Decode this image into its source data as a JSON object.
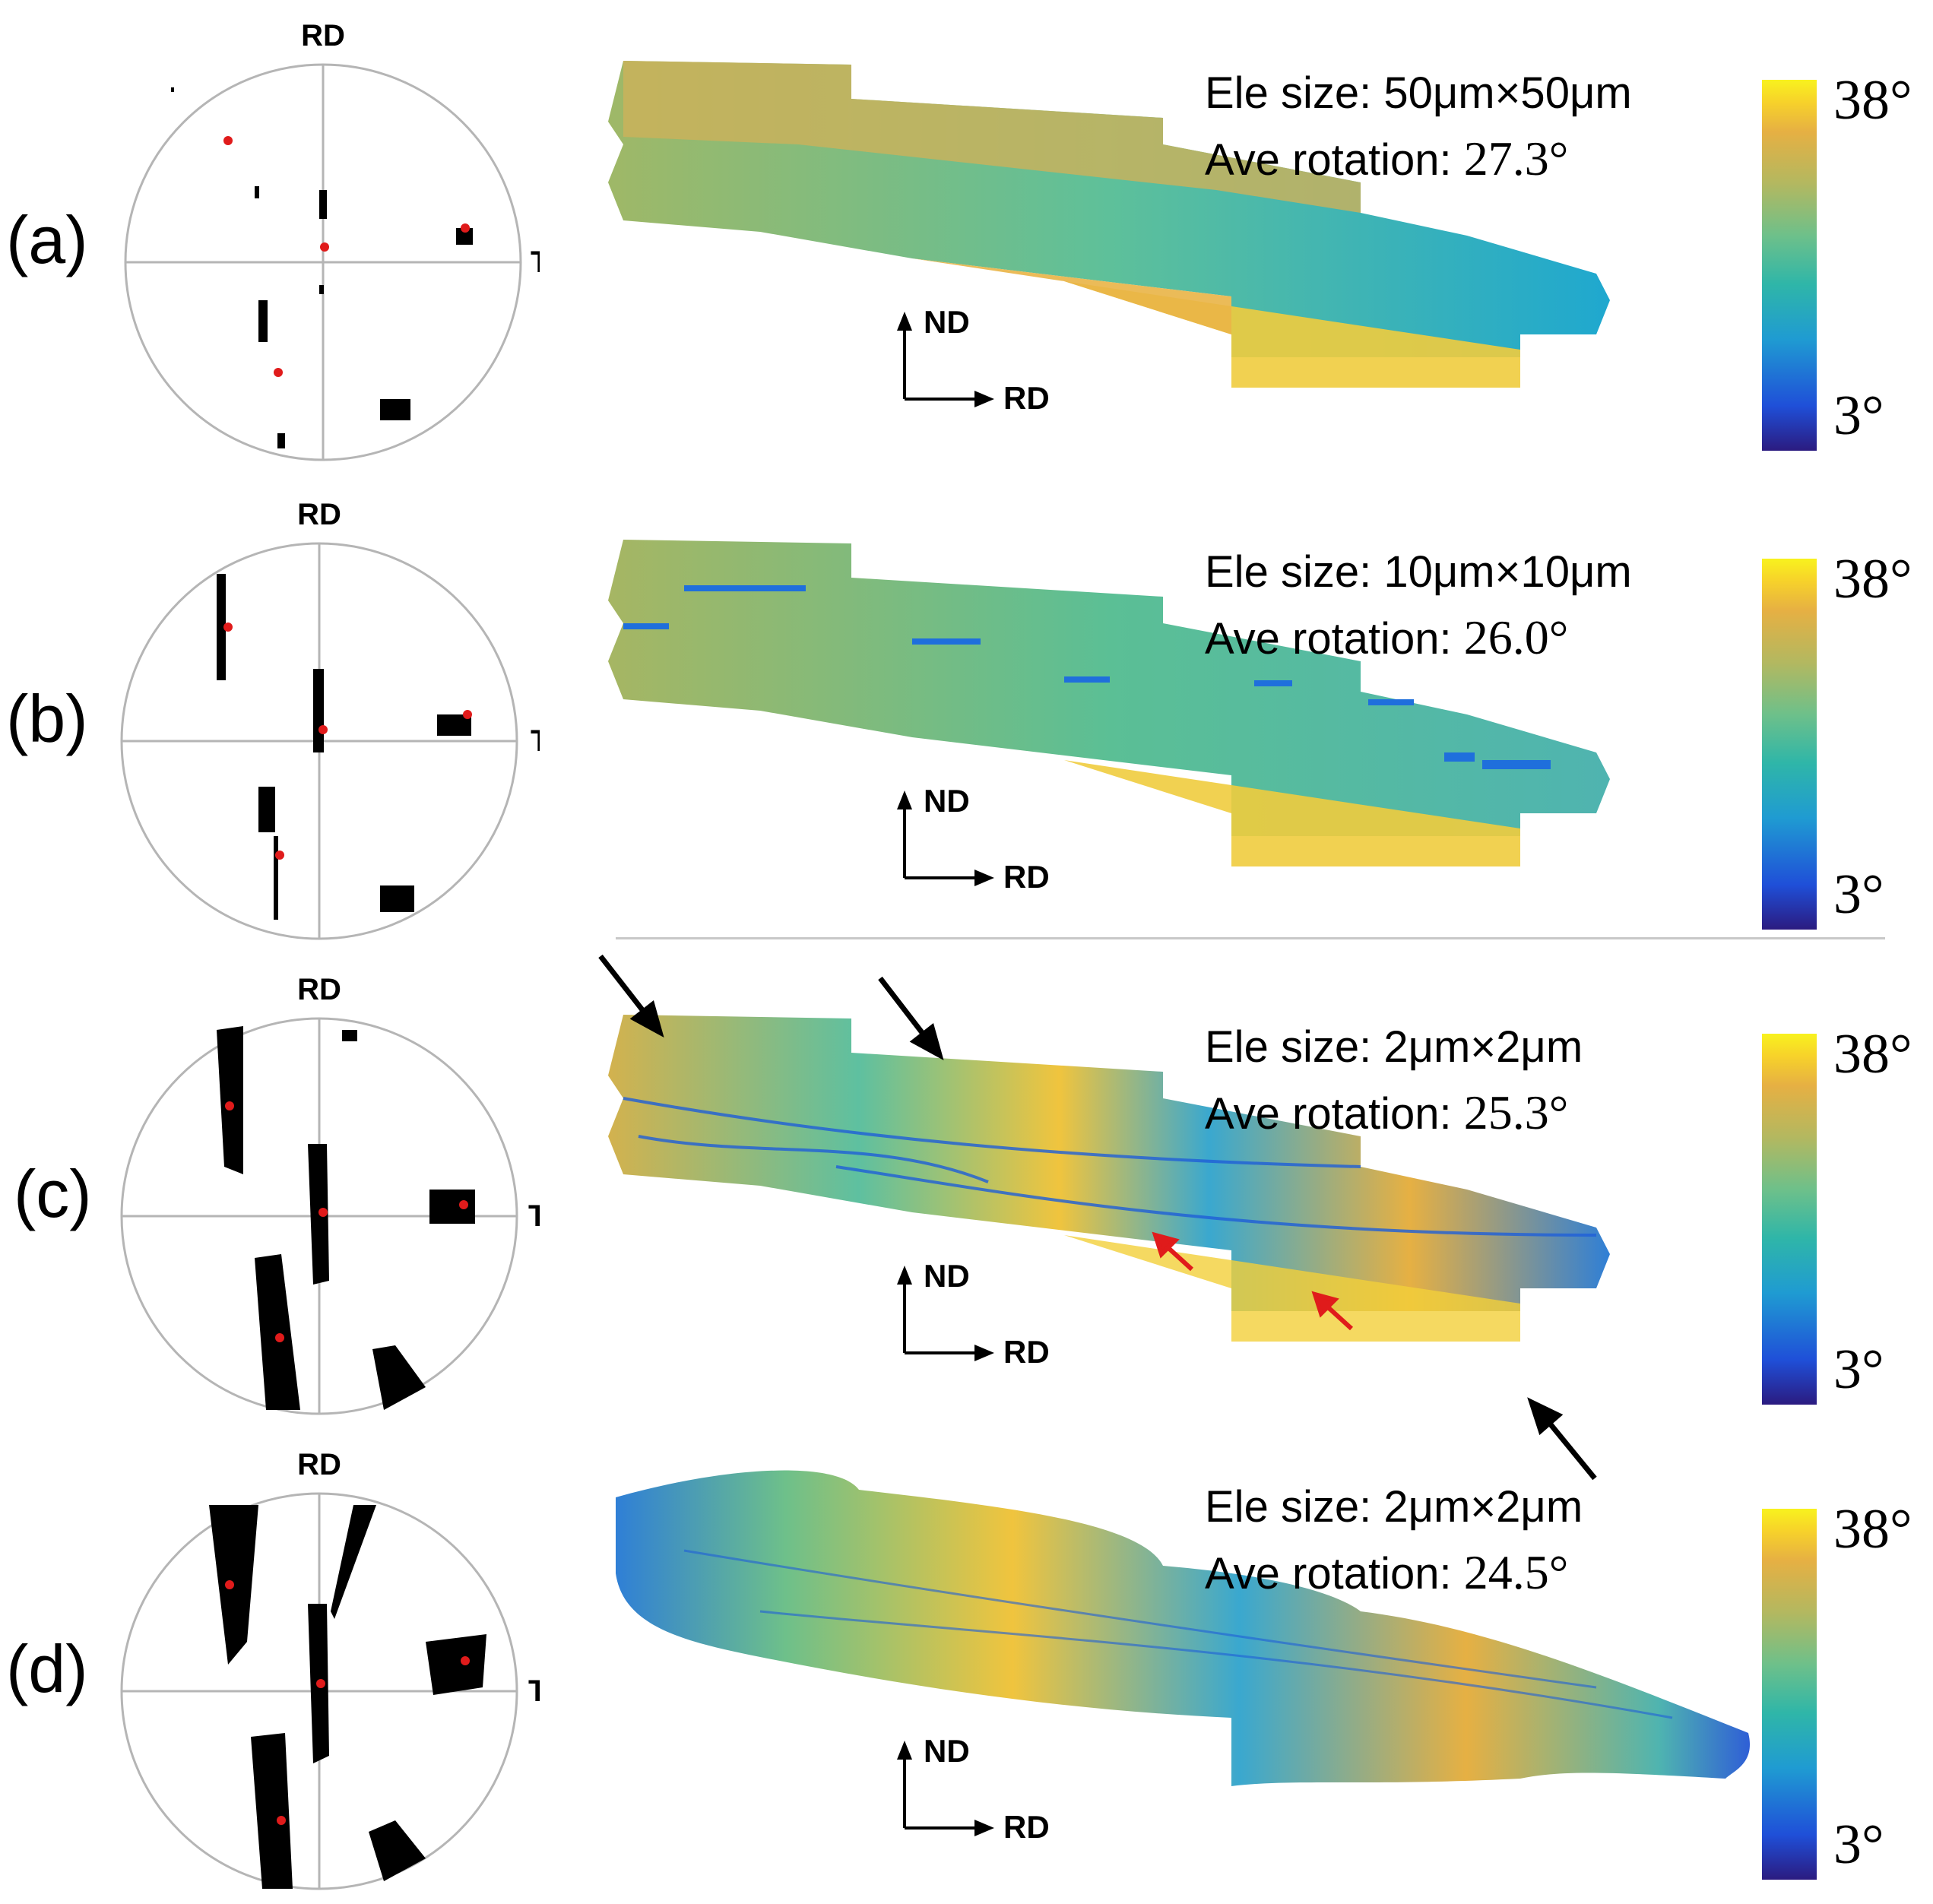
{
  "figure": {
    "panels": [
      {
        "label": "(a)",
        "ele_size_text": "Ele size: 50μm×50μm",
        "ave_rotation_label": "Ave rotation: ",
        "ave_rotation_value": "27.3°",
        "colorbar_max": "38°",
        "colorbar_min": "3°"
      },
      {
        "label": "(b)",
        "ele_size_text": "Ele size: 10μm×10μm",
        "ave_rotation_label": "Ave rotation: ",
        "ave_rotation_value": "26.0°",
        "colorbar_max": "38°",
        "colorbar_min": "3°"
      },
      {
        "label": "(c)",
        "ele_size_text": "Ele size: 2μm×2μm",
        "ave_rotation_label": "Ave rotation: ",
        "ave_rotation_value": "25.3°",
        "colorbar_max": "38°",
        "colorbar_min": "3°"
      },
      {
        "label": "(d)",
        "ele_size_text": "Ele size: 2μm×2μm",
        "ave_rotation_label": "Ave rotation: ",
        "ave_rotation_value": "24.5°",
        "colorbar_max": "38°",
        "colorbar_min": "3°"
      }
    ],
    "pole_figure_labels": {
      "top": "RD",
      "right": "TD"
    },
    "axis_labels": {
      "vertical": "ND",
      "horizontal": "RD"
    },
    "colors": {
      "pole_points": "#000000",
      "pole_markers": "#e01b1b",
      "colormap_low": "#2b1b80",
      "colormap_high": "#f8f21e"
    }
  }
}
